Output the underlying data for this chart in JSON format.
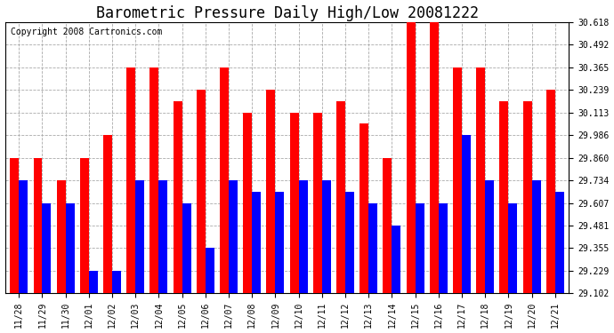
{
  "title": "Barometric Pressure Daily High/Low 20081222",
  "copyright": "Copyright 2008 Cartronics.com",
  "dates": [
    "11/28",
    "11/29",
    "11/30",
    "12/01",
    "12/02",
    "12/03",
    "12/04",
    "12/05",
    "12/06",
    "12/07",
    "12/08",
    "12/09",
    "12/10",
    "12/11",
    "12/12",
    "12/13",
    "12/14",
    "12/15",
    "12/16",
    "12/17",
    "12/18",
    "12/19",
    "12/20",
    "12/21"
  ],
  "highs": [
    29.86,
    29.86,
    29.734,
    29.86,
    29.986,
    30.365,
    30.365,
    30.175,
    30.239,
    30.365,
    30.113,
    30.239,
    30.113,
    30.113,
    30.175,
    30.05,
    29.86,
    30.618,
    30.618,
    30.365,
    30.365,
    30.175,
    30.175,
    30.239
  ],
  "lows": [
    29.734,
    29.607,
    29.607,
    29.229,
    29.229,
    29.734,
    29.734,
    29.607,
    29.355,
    29.734,
    29.671,
    29.671,
    29.734,
    29.734,
    29.671,
    29.607,
    29.481,
    29.607,
    29.607,
    29.986,
    29.734,
    29.607,
    29.734,
    29.671
  ],
  "yticks": [
    29.102,
    29.229,
    29.355,
    29.481,
    29.607,
    29.734,
    29.86,
    29.986,
    30.113,
    30.239,
    30.365,
    30.492,
    30.618
  ],
  "ymin": 29.102,
  "ymax": 30.618,
  "bar_color_high": "#ff0000",
  "bar_color_low": "#0000ff",
  "bg_color": "#ffffff",
  "plot_bg_color": "#ffffff",
  "grid_color": "#aaaaaa",
  "title_fontsize": 12,
  "copyright_fontsize": 7
}
